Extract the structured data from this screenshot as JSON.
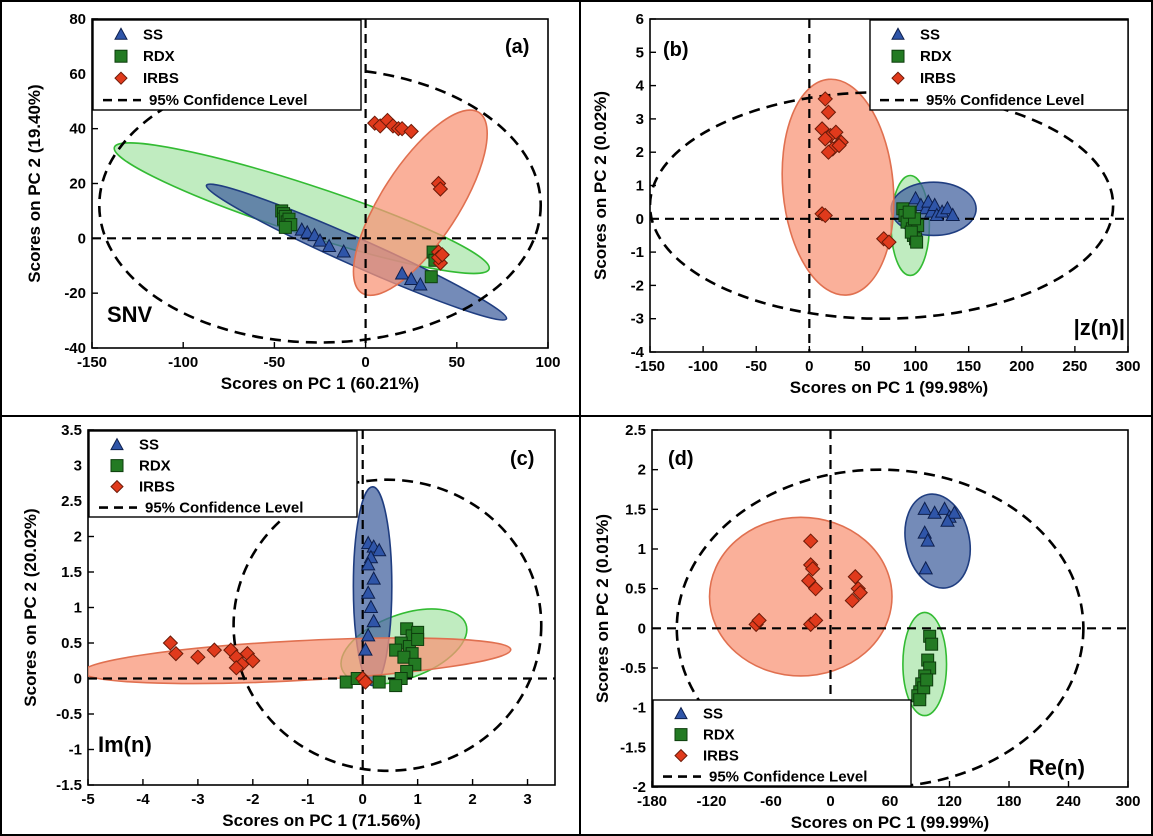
{
  "colors": {
    "SS": "#2f55a8",
    "SS_fill": "rgba(70,100,160,0.75)",
    "SS_stroke": "#1f3d80",
    "RDX": "#237a23",
    "RDX_fill": "rgba(140,220,140,0.55)",
    "RDX_stroke": "#33bb33",
    "IRBS": "#e03a1c",
    "IRBS_fill": "rgba(248,150,120,0.75)",
    "IRBS_stroke": "#e07050"
  },
  "chart_data": [
    {
      "type": "scatter",
      "panel": "(a)",
      "method_label": "SNV",
      "xlabel": "Scores on PC 1 (60.21%)",
      "ylabel": "Scores on PC 2 (19.40%)",
      "xlim": [
        -150,
        100
      ],
      "ylim": [
        -40,
        80
      ],
      "xticks": [
        -150,
        -100,
        -50,
        0,
        50,
        100
      ],
      "yticks": [
        -40,
        -20,
        0,
        20,
        40,
        60,
        80
      ],
      "legend": {
        "position": "top-left",
        "entries": [
          "SS",
          "RDX",
          "IRBS",
          "95% Confidence Level"
        ]
      },
      "confidence_ellipse": {
        "cx": -25,
        "cy": 12,
        "rx": 121,
        "ry": 50,
        "angle": 0
      },
      "series": [
        {
          "name": "SS",
          "marker": "triangle",
          "points": [
            [
              -35,
              3
            ],
            [
              -32,
              2
            ],
            [
              -28,
              1
            ],
            [
              -25,
              -1
            ],
            [
              -20,
              -3
            ],
            [
              -12,
              -5
            ],
            [
              20,
              -13
            ],
            [
              25,
              -15
            ],
            [
              30,
              -17
            ]
          ],
          "ellipse": {
            "cx": -5,
            "cy": -5,
            "rx": 90,
            "ry": 5,
            "angle": 24
          }
        },
        {
          "name": "RDX",
          "marker": "square",
          "points": [
            [
              -46,
              10
            ],
            [
              -45,
              9
            ],
            [
              -45,
              7
            ],
            [
              -44,
              8
            ],
            [
              -43,
              6
            ],
            [
              -42,
              7
            ],
            [
              -41,
              5
            ],
            [
              -44,
              4
            ],
            [
              37,
              -5
            ],
            [
              38,
              -8
            ],
            [
              36,
              -14
            ]
          ],
          "ellipse": {
            "cx": -35,
            "cy": 11,
            "rx": 108,
            "ry": 9,
            "angle": 18
          }
        },
        {
          "name": "IRBS",
          "marker": "diamond",
          "points": [
            [
              5,
              42
            ],
            [
              8,
              41
            ],
            [
              12,
              43
            ],
            [
              15,
              41
            ],
            [
              18,
              40
            ],
            [
              20,
              40
            ],
            [
              25,
              39
            ],
            [
              40,
              20
            ],
            [
              41,
              18
            ],
            [
              40,
              -5
            ],
            [
              41,
              -9
            ],
            [
              40,
              -7
            ],
            [
              42,
              -6
            ]
          ],
          "ellipse": {
            "cx": 30,
            "cy": 13,
            "rx": 59,
            "ry": 14,
            "angle": -57
          }
        }
      ]
    },
    {
      "type": "scatter",
      "panel": "(b)",
      "method_label": "|z(n)|",
      "xlabel": "Scores on PC 1 (99.98%)",
      "ylabel": "Scores on PC 2 (0.02%)",
      "xlim": [
        -150,
        300
      ],
      "ylim": [
        -4,
        6
      ],
      "xticks": [
        -150,
        -100,
        -50,
        0,
        50,
        100,
        150,
        200,
        250,
        300
      ],
      "yticks": [
        -4,
        -3,
        -2,
        -1,
        0,
        1,
        2,
        3,
        4,
        5,
        6
      ],
      "legend": {
        "position": "top-right",
        "entries": [
          "SS",
          "RDX",
          "IRBS",
          "95% Confidence Level"
        ]
      },
      "confidence_ellipse": {
        "cx": 68,
        "cy": 0.4,
        "rx": 218,
        "ry": 3.4,
        "angle": 0
      },
      "series": [
        {
          "name": "SS",
          "marker": "triangle",
          "points": [
            [
              100,
              0.6
            ],
            [
              105,
              0.4
            ],
            [
              110,
              0.3
            ],
            [
              112,
              0.5
            ],
            [
              115,
              0.2
            ],
            [
              118,
              0.4
            ],
            [
              120,
              0.1
            ],
            [
              125,
              0.2
            ],
            [
              130,
              0.3
            ],
            [
              135,
              0.1
            ]
          ],
          "ellipse": {
            "cx": 117,
            "cy": 0.3,
            "rx": 40,
            "ry": 0.8,
            "angle": 0
          }
        },
        {
          "name": "RDX",
          "marker": "square",
          "points": [
            [
              88,
              0.3
            ],
            [
              90,
              0.1
            ],
            [
              92,
              -0.1
            ],
            [
              95,
              0.2
            ],
            [
              97,
              -0.3
            ],
            [
              98,
              -0.5
            ],
            [
              100,
              -0.6
            ],
            [
              102,
              -0.2
            ],
            [
              99,
              0.0
            ],
            [
              96,
              -0.4
            ],
            [
              94,
              0.2
            ],
            [
              101,
              -0.7
            ]
          ],
          "ellipse": {
            "cx": 95,
            "cy": -0.2,
            "rx": 18,
            "ry": 1.5,
            "angle": 0
          }
        },
        {
          "name": "IRBS",
          "marker": "diamond",
          "points": [
            [
              15,
              3.6
            ],
            [
              18,
              3.2
            ],
            [
              12,
              2.7
            ],
            [
              20,
              2.5
            ],
            [
              25,
              2.6
            ],
            [
              30,
              2.3
            ],
            [
              22,
              2.1
            ],
            [
              15,
              2.4
            ],
            [
              28,
              2.2
            ],
            [
              18,
              2.0
            ],
            [
              12,
              0.15
            ],
            [
              15,
              0.1
            ],
            [
              70,
              -0.6
            ],
            [
              75,
              -0.7
            ]
          ],
          "ellipse": {
            "cx": 27,
            "cy": 0.95,
            "rx": 52,
            "ry": 3.25,
            "angle": -5
          }
        }
      ]
    },
    {
      "type": "scatter",
      "panel": "(c)",
      "method_label": "Im(n)",
      "xlabel": "Scores on PC 1 (71.56%)",
      "ylabel": "Scores on PC 2 (20.02%)",
      "xlim": [
        -5,
        3.5
      ],
      "ylim": [
        -1.5,
        3.5
      ],
      "xticks": [
        -5,
        -4,
        -3,
        -2,
        -1,
        0,
        1,
        2,
        3
      ],
      "yticks": [
        -1.5,
        -1,
        -0.5,
        0,
        0.5,
        1,
        1.5,
        2,
        2.5,
        3,
        3.5
      ],
      "legend": {
        "position": "top-left",
        "entries": [
          "SS",
          "RDX",
          "IRBS",
          "95% Confidence Level"
        ]
      },
      "confidence_ellipse": {
        "cx": 0.45,
        "cy": 0.75,
        "rx": 2.8,
        "ry": 2.05,
        "angle": 0
      },
      "series": [
        {
          "name": "SS",
          "marker": "triangle",
          "points": [
            [
              0.1,
              1.9
            ],
            [
              0.2,
              1.85
            ],
            [
              0.3,
              1.8
            ],
            [
              0.15,
              1.7
            ],
            [
              0.1,
              1.6
            ],
            [
              0.2,
              1.4
            ],
            [
              0.1,
              1.2
            ],
            [
              0.15,
              1.0
            ],
            [
              0.2,
              0.8
            ],
            [
              0.1,
              0.6
            ],
            [
              0.05,
              0.4
            ]
          ],
          "ellipse": {
            "cx": 0.18,
            "cy": 1.3,
            "rx": 0.35,
            "ry": 1.4,
            "angle": 0
          }
        },
        {
          "name": "RDX",
          "marker": "square",
          "points": [
            [
              0.8,
              0.7
            ],
            [
              0.9,
              0.6
            ],
            [
              1.0,
              0.65
            ],
            [
              0.7,
              0.5
            ],
            [
              0.6,
              0.4
            ],
            [
              0.85,
              0.45
            ],
            [
              1.0,
              0.55
            ],
            [
              0.9,
              0.35
            ],
            [
              0.75,
              0.3
            ],
            [
              0.95,
              0.2
            ],
            [
              0.8,
              0.1
            ],
            [
              0.7,
              0.0
            ],
            [
              0.6,
              -0.1
            ],
            [
              -0.3,
              -0.05
            ],
            [
              -0.1,
              0.0
            ],
            [
              0.3,
              -0.05
            ]
          ],
          "ellipse": {
            "cx": 0.75,
            "cy": 0.45,
            "rx": 1.2,
            "ry": 0.45,
            "angle": -20
          }
        },
        {
          "name": "IRBS",
          "marker": "diamond",
          "points": [
            [
              -3.5,
              0.5
            ],
            [
              -3.4,
              0.35
            ],
            [
              -3.0,
              0.3
            ],
            [
              -2.7,
              0.4
            ],
            [
              -2.4,
              0.4
            ],
            [
              -2.3,
              0.3
            ],
            [
              -2.2,
              0.2
            ],
            [
              -2.1,
              0.35
            ],
            [
              -2.0,
              0.25
            ],
            [
              -2.3,
              0.15
            ],
            [
              0.0,
              0.0
            ],
            [
              0.05,
              -0.05
            ]
          ],
          "ellipse": {
            "cx": -1.2,
            "cy": 0.25,
            "rx": 3.9,
            "ry": 0.28,
            "angle": -3
          }
        }
      ]
    },
    {
      "type": "scatter",
      "panel": "(d)",
      "method_label": "Re(n)",
      "xlabel": "Scores on PC 1 (99.99%)",
      "ylabel": "Scores on PC 2 (0.01%)",
      "xlim": [
        -180,
        300
      ],
      "ylim": [
        -2,
        2.5
      ],
      "xticks": [
        -180,
        -120,
        -60,
        0,
        60,
        120,
        180,
        240,
        300
      ],
      "yticks": [
        -2,
        -1.5,
        -1,
        -0.5,
        0,
        0.5,
        1,
        1.5,
        2,
        2.5
      ],
      "legend": {
        "position": "bottom-left",
        "entries": [
          "SS",
          "RDX",
          "IRBS",
          "95% Confidence Level"
        ]
      },
      "confidence_ellipse": {
        "cx": 50,
        "cy": 0.0,
        "rx": 205,
        "ry": 2.0,
        "angle": 0
      },
      "series": [
        {
          "name": "SS",
          "marker": "triangle",
          "points": [
            [
              95,
              1.5
            ],
            [
              105,
              1.45
            ],
            [
              115,
              1.5
            ],
            [
              120,
              1.4
            ],
            [
              125,
              1.45
            ],
            [
              118,
              1.35
            ],
            [
              95,
              1.2
            ],
            [
              98,
              1.1
            ],
            [
              96,
              0.75
            ]
          ],
          "ellipse": {
            "cx": 108,
            "cy": 1.1,
            "rx": 32,
            "ry": 0.6,
            "angle": -12
          }
        },
        {
          "name": "RDX",
          "marker": "square",
          "points": [
            [
              100,
              -0.1
            ],
            [
              102,
              -0.2
            ],
            [
              98,
              -0.4
            ],
            [
              100,
              -0.5
            ],
            [
              95,
              -0.6
            ],
            [
              92,
              -0.7
            ],
            [
              90,
              -0.8
            ],
            [
              88,
              -0.85
            ],
            [
              94,
              -0.75
            ],
            [
              90,
              -0.9
            ],
            [
              97,
              -0.65
            ]
          ],
          "ellipse": {
            "cx": 95,
            "cy": -0.45,
            "rx": 22,
            "ry": 0.65,
            "angle": 0
          }
        },
        {
          "name": "IRBS",
          "marker": "diamond",
          "points": [
            [
              -75,
              0.05
            ],
            [
              -72,
              0.1
            ],
            [
              -20,
              1.1
            ],
            [
              -20,
              0.8
            ],
            [
              -18,
              0.75
            ],
            [
              -22,
              0.6
            ],
            [
              -15,
              0.5
            ],
            [
              -20,
              0.05
            ],
            [
              -15,
              0.1
            ],
            [
              25,
              0.65
            ],
            [
              28,
              0.5
            ],
            [
              30,
              0.45
            ],
            [
              22,
              0.35
            ]
          ],
          "ellipse": {
            "cx": -30,
            "cy": 0.4,
            "rx": 92,
            "ry": 1.0,
            "angle": 0
          }
        }
      ]
    }
  ]
}
